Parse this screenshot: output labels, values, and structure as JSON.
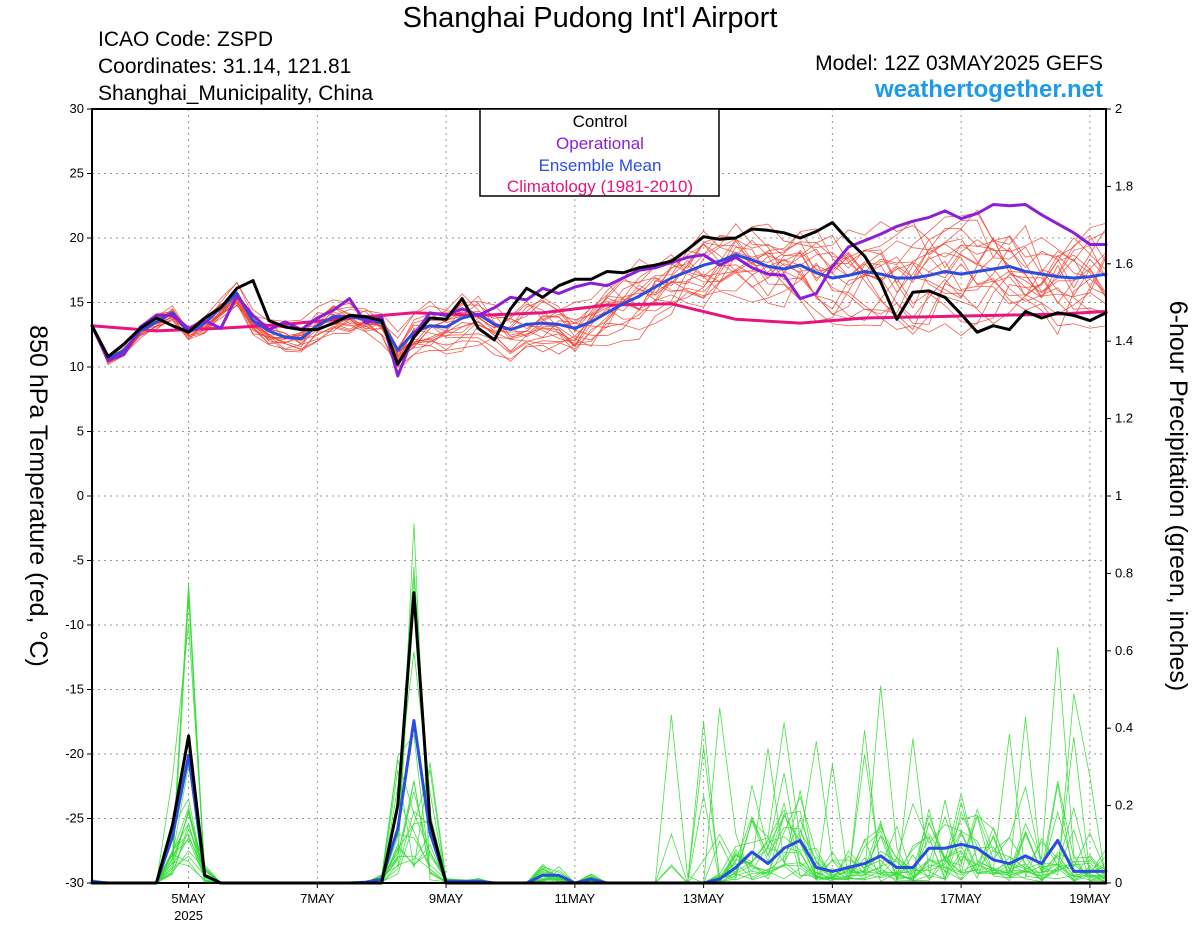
{
  "header": {
    "title": "Shanghai Pudong Int'l Airport",
    "icao": "ICAO Code: ZSPD",
    "coordinates": "Coordinates: 31.14, 121.81",
    "location": "Shanghai_Municipality, China",
    "model": "Model: 12Z 03MAY2025 GEFS",
    "site": "weathertogether.net"
  },
  "colors": {
    "control": "#000000",
    "operational": "#8b1fd6",
    "ensemble_mean": "#2a4de0",
    "climatology": "#e8157e",
    "temp_members": "#ee4433",
    "precip_members": "#33dd33",
    "gridline": "#999999"
  },
  "chart_data": {
    "type": "line",
    "title": "Shanghai Pudong Int'l Airport",
    "legend": {
      "position": "top-center",
      "entries": [
        "Control",
        "Operational",
        "Ensemble Mean",
        "Climatology (1981-2010)"
      ]
    },
    "xlabel": "",
    "x_ticks": [
      "5MAY",
      "7MAY",
      "9MAY",
      "11MAY",
      "13MAY",
      "15MAY",
      "17MAY",
      "19MAY"
    ],
    "x_year_label": "2025",
    "x_range_hours_from_run": [
      0,
      378
    ],
    "y_left": {
      "label": "850 hPa Temperature (red, °C)",
      "range": [
        -30,
        30
      ],
      "ticks": [
        30,
        25,
        20,
        15,
        10,
        5,
        0,
        -5,
        -10,
        -15,
        -20,
        -25,
        -30
      ]
    },
    "y_right": {
      "label": "6-hour Precipitation (green, inches)",
      "range": [
        0,
        2
      ],
      "ticks": [
        2,
        1.8,
        1.6,
        1.4,
        1.2,
        1,
        0.8,
        0.6,
        0.4,
        0.2,
        0
      ]
    },
    "grid": true,
    "series": [
      {
        "name": "Climatology (1981-2010)",
        "axis": "left",
        "points": [
          [
            0,
            13.2
          ],
          [
            24,
            12.8
          ],
          [
            48,
            13.0
          ],
          [
            72,
            13.3
          ],
          [
            96,
            13.8
          ],
          [
            120,
            14.2
          ],
          [
            144,
            14.0
          ],
          [
            168,
            14.2
          ],
          [
            192,
            14.8
          ],
          [
            216,
            14.9
          ],
          [
            240,
            13.7
          ],
          [
            264,
            13.4
          ],
          [
            288,
            13.8
          ],
          [
            312,
            13.9
          ],
          [
            336,
            14.0
          ],
          [
            360,
            14.1
          ],
          [
            378,
            14.3
          ]
        ]
      },
      {
        "name": "Ensemble Mean",
        "axis": "left",
        "points": [
          [
            0,
            13.2
          ],
          [
            6,
            10.6
          ],
          [
            12,
            11.3
          ],
          [
            18,
            12.8
          ],
          [
            24,
            13.5
          ],
          [
            30,
            14.2
          ],
          [
            36,
            12.7
          ],
          [
            42,
            13.4
          ],
          [
            48,
            14.6
          ],
          [
            54,
            15.7
          ],
          [
            60,
            13.6
          ],
          [
            66,
            12.8
          ],
          [
            72,
            12.3
          ],
          [
            78,
            12.2
          ],
          [
            84,
            13.2
          ],
          [
            90,
            13.9
          ],
          [
            96,
            13.9
          ],
          [
            102,
            13.7
          ],
          [
            108,
            13.4
          ],
          [
            114,
            11.3
          ],
          [
            120,
            12.7
          ],
          [
            126,
            13.2
          ],
          [
            132,
            13.1
          ],
          [
            138,
            13.8
          ],
          [
            144,
            14.1
          ],
          [
            150,
            13.3
          ],
          [
            156,
            12.9
          ],
          [
            162,
            13.3
          ],
          [
            168,
            13.4
          ],
          [
            174,
            13.3
          ],
          [
            180,
            13.0
          ],
          [
            186,
            13.5
          ],
          [
            192,
            14.2
          ],
          [
            198,
            14.9
          ],
          [
            204,
            15.5
          ],
          [
            210,
            16.2
          ],
          [
            216,
            16.9
          ],
          [
            222,
            17.4
          ],
          [
            228,
            17.9
          ],
          [
            234,
            18.2
          ],
          [
            240,
            18.7
          ],
          [
            246,
            18.3
          ],
          [
            252,
            17.8
          ],
          [
            258,
            17.6
          ],
          [
            264,
            17.9
          ],
          [
            270,
            17.3
          ],
          [
            276,
            16.9
          ],
          [
            282,
            17.1
          ],
          [
            288,
            17.4
          ],
          [
            294,
            17.2
          ],
          [
            300,
            16.9
          ],
          [
            306,
            16.9
          ],
          [
            312,
            17.1
          ],
          [
            318,
            17.4
          ],
          [
            324,
            17.2
          ],
          [
            330,
            17.4
          ],
          [
            336,
            17.6
          ],
          [
            342,
            17.8
          ],
          [
            348,
            17.4
          ],
          [
            354,
            17.2
          ],
          [
            360,
            17.0
          ],
          [
            366,
            16.9
          ],
          [
            372,
            17.0
          ],
          [
            378,
            17.2
          ]
        ]
      },
      {
        "name": "Operational",
        "axis": "left",
        "points": [
          [
            0,
            13.2
          ],
          [
            6,
            10.5
          ],
          [
            12,
            11.0
          ],
          [
            18,
            13.1
          ],
          [
            24,
            14.0
          ],
          [
            30,
            14.0
          ],
          [
            36,
            13.0
          ],
          [
            42,
            13.6
          ],
          [
            48,
            13.0
          ],
          [
            54,
            15.5
          ],
          [
            60,
            14.0
          ],
          [
            66,
            12.9
          ],
          [
            72,
            13.5
          ],
          [
            78,
            12.9
          ],
          [
            84,
            13.8
          ],
          [
            90,
            14.4
          ],
          [
            96,
            15.3
          ],
          [
            102,
            13.4
          ],
          [
            108,
            13.9
          ],
          [
            114,
            9.3
          ],
          [
            120,
            12.5
          ],
          [
            126,
            14.2
          ],
          [
            132,
            14.0
          ],
          [
            138,
            14.5
          ],
          [
            144,
            14.0
          ],
          [
            150,
            14.6
          ],
          [
            156,
            15.4
          ],
          [
            162,
            15.2
          ],
          [
            168,
            16.1
          ],
          [
            174,
            15.7
          ],
          [
            180,
            16.2
          ],
          [
            186,
            16.5
          ],
          [
            192,
            16.3
          ],
          [
            198,
            16.9
          ],
          [
            204,
            17.5
          ],
          [
            210,
            17.7
          ],
          [
            216,
            18.1
          ],
          [
            222,
            18.5
          ],
          [
            228,
            18.7
          ],
          [
            234,
            17.9
          ],
          [
            240,
            18.5
          ],
          [
            246,
            17.7
          ],
          [
            252,
            17.2
          ],
          [
            258,
            17.1
          ],
          [
            264,
            15.3
          ],
          [
            270,
            15.7
          ],
          [
            276,
            17.8
          ],
          [
            282,
            19.3
          ],
          [
            288,
            19.8
          ],
          [
            294,
            20.3
          ],
          [
            300,
            20.9
          ],
          [
            306,
            21.3
          ],
          [
            312,
            21.6
          ],
          [
            318,
            22.1
          ],
          [
            324,
            21.5
          ],
          [
            330,
            21.9
          ],
          [
            336,
            22.6
          ],
          [
            342,
            22.5
          ],
          [
            348,
            22.6
          ],
          [
            354,
            21.8
          ],
          [
            360,
            21.1
          ],
          [
            366,
            20.4
          ],
          [
            372,
            19.5
          ],
          [
            378,
            19.5
          ]
        ]
      },
      {
        "name": "Control",
        "axis": "left",
        "points": [
          [
            0,
            13.2
          ],
          [
            6,
            10.8
          ],
          [
            12,
            11.8
          ],
          [
            18,
            13.0
          ],
          [
            24,
            13.8
          ],
          [
            30,
            13.2
          ],
          [
            36,
            12.7
          ],
          [
            42,
            13.8
          ],
          [
            48,
            14.6
          ],
          [
            54,
            16.1
          ],
          [
            60,
            16.7
          ],
          [
            66,
            13.6
          ],
          [
            72,
            13.1
          ],
          [
            78,
            12.9
          ],
          [
            84,
            12.9
          ],
          [
            90,
            13.4
          ],
          [
            96,
            14.0
          ],
          [
            102,
            13.9
          ],
          [
            108,
            13.6
          ],
          [
            114,
            10.2
          ],
          [
            120,
            12.3
          ],
          [
            126,
            13.8
          ],
          [
            132,
            13.7
          ],
          [
            138,
            15.3
          ],
          [
            144,
            13.0
          ],
          [
            150,
            12.1
          ],
          [
            156,
            14.5
          ],
          [
            162,
            16.1
          ],
          [
            168,
            15.4
          ],
          [
            174,
            16.3
          ],
          [
            180,
            16.8
          ],
          [
            186,
            16.8
          ],
          [
            192,
            17.4
          ],
          [
            198,
            17.3
          ],
          [
            204,
            17.7
          ],
          [
            210,
            17.9
          ],
          [
            216,
            18.2
          ],
          [
            222,
            19.1
          ],
          [
            228,
            20.1
          ],
          [
            234,
            19.9
          ],
          [
            240,
            20.0
          ],
          [
            246,
            20.7
          ],
          [
            252,
            20.6
          ],
          [
            258,
            20.4
          ],
          [
            264,
            20.0
          ],
          [
            270,
            20.5
          ],
          [
            276,
            21.2
          ],
          [
            282,
            19.8
          ],
          [
            288,
            18.6
          ],
          [
            294,
            16.6
          ],
          [
            300,
            13.7
          ],
          [
            306,
            15.8
          ],
          [
            312,
            15.9
          ],
          [
            318,
            15.4
          ],
          [
            324,
            14.1
          ],
          [
            330,
            12.7
          ],
          [
            336,
            13.2
          ],
          [
            342,
            12.9
          ],
          [
            348,
            14.3
          ],
          [
            354,
            13.8
          ],
          [
            360,
            14.2
          ],
          [
            366,
            14.0
          ],
          [
            372,
            13.6
          ],
          [
            378,
            14.2
          ]
        ]
      },
      {
        "name": "Ensemble Mean",
        "axis": "right",
        "points": [
          [
            0,
            0.004
          ],
          [
            6,
            0.0
          ],
          [
            12,
            0.0
          ],
          [
            18,
            0.0
          ],
          [
            24,
            0.0
          ],
          [
            30,
            0.12
          ],
          [
            36,
            0.33
          ],
          [
            42,
            0.02
          ],
          [
            48,
            0.0
          ],
          [
            72,
            0.0
          ],
          [
            96,
            0.0
          ],
          [
            102,
            0.002
          ],
          [
            108,
            0.01
          ],
          [
            114,
            0.14
          ],
          [
            120,
            0.42
          ],
          [
            126,
            0.13
          ],
          [
            132,
            0.005
          ],
          [
            138,
            0.004
          ],
          [
            144,
            0.005
          ],
          [
            150,
            0.0
          ],
          [
            162,
            0.0
          ],
          [
            168,
            0.02
          ],
          [
            174,
            0.02
          ],
          [
            180,
            0.0
          ],
          [
            186,
            0.01
          ],
          [
            192,
            0.0
          ],
          [
            228,
            0.0
          ],
          [
            234,
            0.01
          ],
          [
            240,
            0.04
          ],
          [
            246,
            0.08
          ],
          [
            252,
            0.05
          ],
          [
            258,
            0.09
          ],
          [
            264,
            0.11
          ],
          [
            270,
            0.04
          ],
          [
            276,
            0.03
          ],
          [
            282,
            0.04
          ],
          [
            288,
            0.05
          ],
          [
            294,
            0.07
          ],
          [
            300,
            0.04
          ],
          [
            306,
            0.04
          ],
          [
            312,
            0.09
          ],
          [
            318,
            0.09
          ],
          [
            324,
            0.1
          ],
          [
            330,
            0.09
          ],
          [
            336,
            0.06
          ],
          [
            342,
            0.05
          ],
          [
            348,
            0.07
          ],
          [
            354,
            0.05
          ],
          [
            360,
            0.11
          ],
          [
            366,
            0.03
          ],
          [
            372,
            0.03
          ],
          [
            378,
            0.03
          ]
        ]
      },
      {
        "name": "Control",
        "axis": "right",
        "points": [
          [
            0,
            0.0
          ],
          [
            24,
            0.0
          ],
          [
            30,
            0.15
          ],
          [
            36,
            0.38
          ],
          [
            42,
            0.02
          ],
          [
            48,
            0.0
          ],
          [
            108,
            0.0
          ],
          [
            114,
            0.2
          ],
          [
            120,
            0.75
          ],
          [
            126,
            0.16
          ],
          [
            132,
            0.0
          ],
          [
            378,
            0.0
          ]
        ]
      }
    ]
  }
}
